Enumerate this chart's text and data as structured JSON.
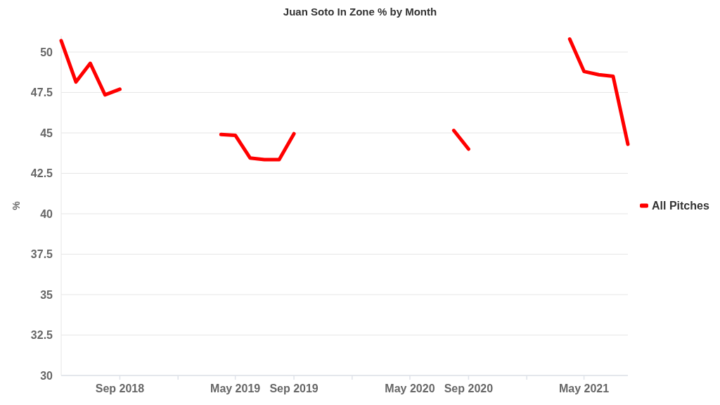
{
  "chart_data": {
    "type": "line",
    "title": "Juan Soto In Zone % by Month",
    "ylabel": "%",
    "x": [
      "2018-05",
      "2018-06",
      "2018-07",
      "2018-08",
      "2018-09",
      "2018-10",
      "2019-04",
      "2019-05",
      "2019-06",
      "2019-07",
      "2019-08",
      "2019-09",
      "2019-10",
      "2020-08",
      "2020-09",
      "2020-10",
      "2021-04",
      "2021-05",
      "2021-06",
      "2021-07",
      "2021-08"
    ],
    "series": [
      {
        "name": "All Pitches",
        "color": "#ff0000",
        "values": [
          50.7,
          48.15,
          49.3,
          47.35,
          47.7,
          null,
          44.9,
          44.85,
          43.45,
          43.35,
          43.35,
          44.95,
          null,
          45.15,
          44.0,
          null,
          50.8,
          48.8,
          48.6,
          48.5,
          44.3
        ]
      }
    ],
    "xlim": [
      "2018-05",
      "2021-08"
    ],
    "xticks": [
      {
        "value": "2018-09",
        "label": "Sep 2018"
      },
      {
        "value": "2019-01",
        "label": null
      },
      {
        "value": "2019-05",
        "label": "May 2019"
      },
      {
        "value": "2019-09",
        "label": "Sep 2019"
      },
      {
        "value": "2020-01",
        "label": null
      },
      {
        "value": "2020-05",
        "label": "May 2020"
      },
      {
        "value": "2020-09",
        "label": "Sep 2020"
      },
      {
        "value": "2021-01",
        "label": null
      },
      {
        "value": "2021-05",
        "label": "May 2021"
      }
    ],
    "ylim": [
      30,
      51
    ],
    "yticks": [
      30,
      32.5,
      35,
      37.5,
      40,
      42.5,
      45,
      47.5,
      50
    ],
    "grid": "y",
    "legend": "right",
    "marker": "none",
    "line_style": "solid"
  }
}
